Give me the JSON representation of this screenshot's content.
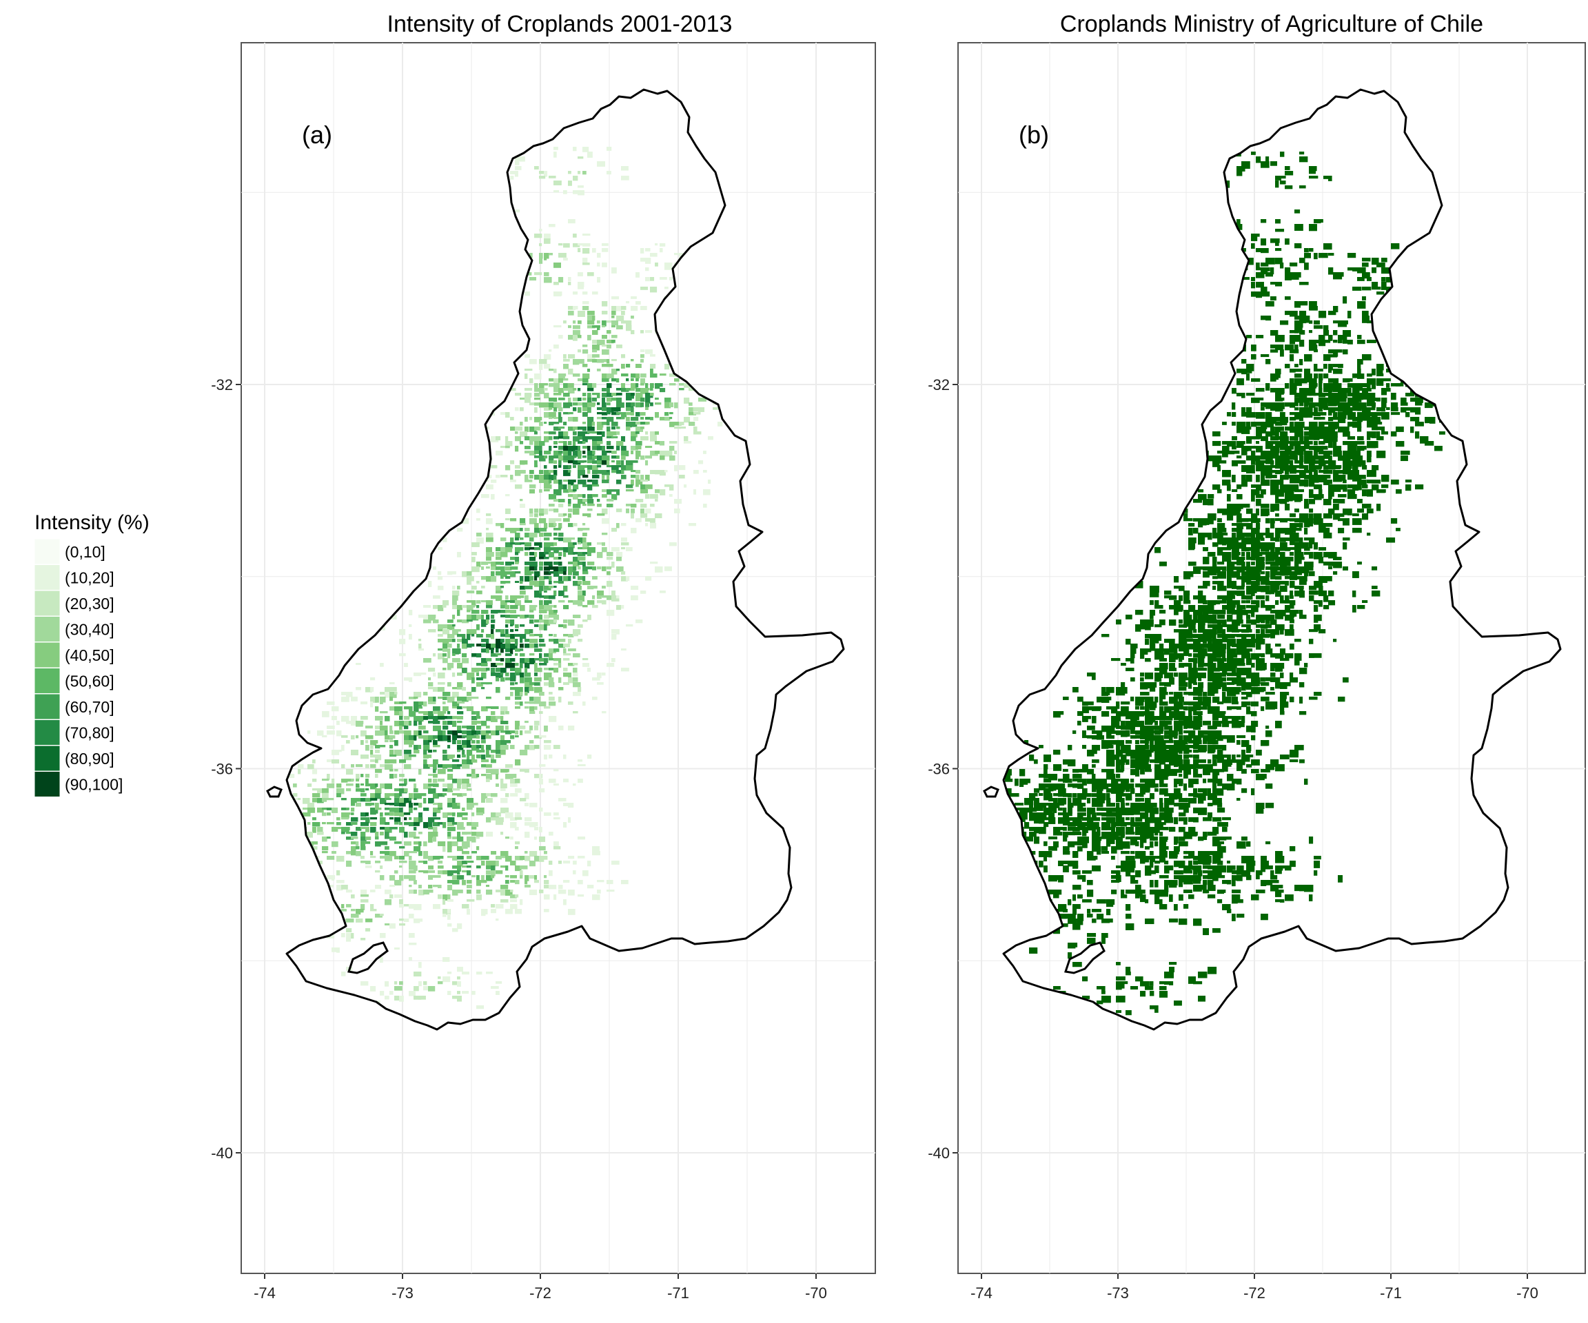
{
  "chart_data": [
    {
      "type": "map",
      "panel_label": "(a)",
      "title": "Intensity of Croplands 2001-2013",
      "x_ticks": [
        "-74",
        "-73",
        "-72",
        "-71",
        "-70"
      ],
      "y_ticks": [
        "-32",
        "-36",
        "-40"
      ],
      "grid": true
    },
    {
      "type": "map",
      "panel_label": "(b)",
      "title": "Croplands Ministry of Agriculture of Chile",
      "x_ticks": [
        "-74",
        "-73",
        "-72",
        "-71",
        "-70"
      ],
      "y_ticks": [
        "-32",
        "-36",
        "-40"
      ],
      "grid": true
    }
  ],
  "legend": {
    "title": "Intensity (%)",
    "items": [
      {
        "label": "(0,10]",
        "color": "#f7fcf5"
      },
      {
        "label": "(10,20]",
        "color": "#e5f5e0"
      },
      {
        "label": "(20,30]",
        "color": "#c7e9c0"
      },
      {
        "label": "(30,40]",
        "color": "#a1d99b"
      },
      {
        "label": "(40,50]",
        "color": "#86cc7f"
      },
      {
        "label": "(50,60]",
        "color": "#5db865"
      },
      {
        "label": "(60,70]",
        "color": "#3fa154"
      },
      {
        "label": "(70,80]",
        "color": "#238b45"
      },
      {
        "label": "(80,90]",
        "color": "#0b6e2e"
      },
      {
        "label": "(90,100]",
        "color": "#00441b"
      }
    ]
  },
  "colors": {
    "grid": "#ebebeb",
    "panel_border": "#555555",
    "outline": "#000000",
    "crop_binary": "#006400"
  }
}
